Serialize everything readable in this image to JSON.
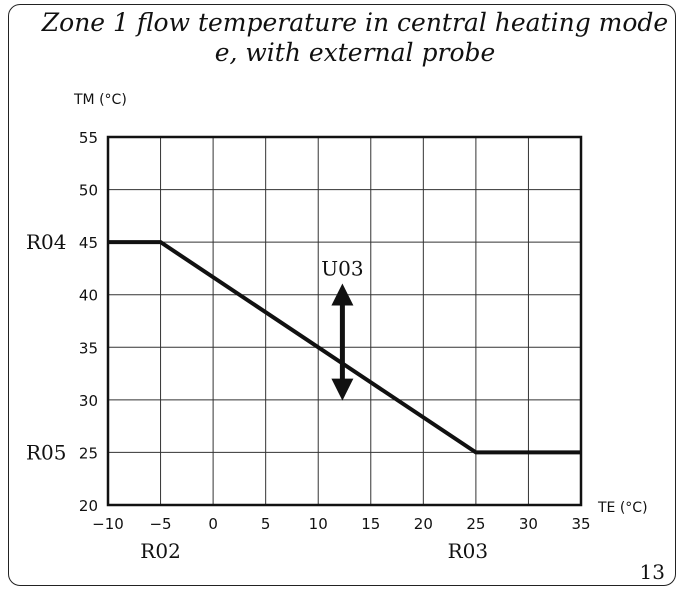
{
  "chart_data": {
    "type": "line",
    "title_lines": [
      "Zone 1 flow temperature in central heating mode",
      "e, with external probe"
    ],
    "xlabel": "TE (°C)",
    "ylabel": "TM (°C)",
    "xlim": [
      -10,
      35
    ],
    "ylim": [
      20,
      55
    ],
    "x_ticks": [
      -10,
      -5,
      0,
      5,
      10,
      15,
      20,
      25,
      30,
      35
    ],
    "y_ticks": [
      20,
      25,
      30,
      35,
      40,
      45,
      50,
      55
    ],
    "grid": true,
    "series": [
      {
        "x": [
          -10,
          -5,
          25,
          35
        ],
        "y": [
          45,
          45,
          25,
          25
        ]
      }
    ],
    "annotations": {
      "y_max_label": "R04",
      "y_max_value": 45,
      "y_min_label": "R05",
      "y_min_value": 25,
      "x_start_label": "R02",
      "x_start_value": -5,
      "x_end_label": "R03",
      "x_end_value": 25,
      "shift_label": "U03",
      "shift_arrow_x": 12.3,
      "shift_arrow_y": [
        30.5,
        40.5
      ]
    }
  },
  "page_number": "13"
}
